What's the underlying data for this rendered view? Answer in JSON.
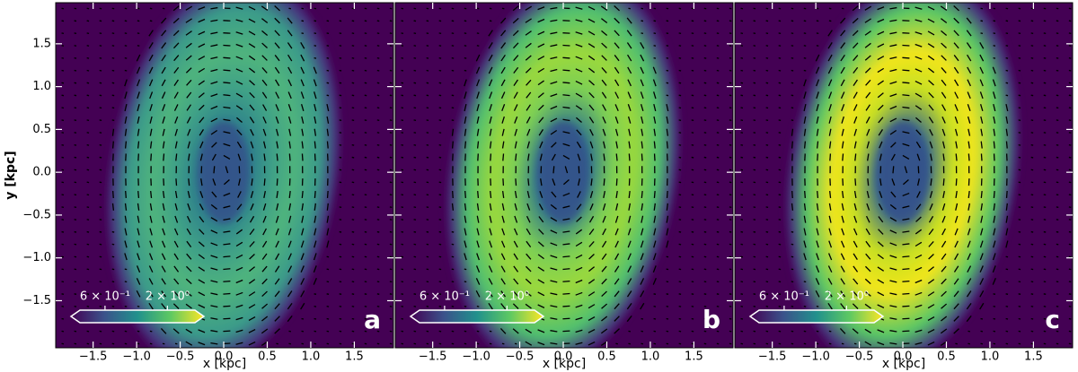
{
  "chart_data": [
    {
      "type": "heatmap",
      "panel_label": "a",
      "xlabel": "x [kpc]",
      "ylabel": "y [kpc]",
      "xlim": [
        -1.93,
        1.95
      ],
      "ylim": [
        -2.05,
        1.98
      ],
      "xticks": [
        {
          "value": -1.5,
          "label": "−1.5"
        },
        {
          "value": -1,
          "label": "−1.0"
        },
        {
          "value": -0.5,
          "label": "−0.5"
        },
        {
          "value": 0,
          "label": "0.0"
        },
        0.5,
        {
          "value": 1,
          "label": "1.0"
        },
        1.5
      ],
      "yticks": [
        {
          "value": -1.5,
          "label": "−1.5"
        },
        {
          "value": -1,
          "label": "−1.0"
        },
        {
          "value": -0.5,
          "label": "−0.5"
        },
        {
          "value": 0,
          "label": "0.0"
        },
        0.5,
        {
          "value": 1,
          "label": "1.0"
        },
        1.5
      ],
      "yticklabels": true,
      "colorbar": {
        "log": true,
        "clim": [
          0.37,
          3.4
        ],
        "colormap": "viridis",
        "ticks": [
          {
            "value": 0.6,
            "label": "6 × 10⁻¹"
          },
          {
            "value": 2,
            "label": "2 × 10⁰"
          }
        ]
      }
    },
    {
      "type": "heatmap",
      "panel_label": "b",
      "xlabel": "x [kpc]",
      "xlim": [
        -1.93,
        1.95
      ],
      "ylim": [
        -2.05,
        1.98
      ],
      "xticks": [
        {
          "value": -1.5,
          "label": "−1.5"
        },
        {
          "value": -1,
          "label": "−1.0"
        },
        {
          "value": -0.5,
          "label": "−0.5"
        },
        {
          "value": 0,
          "label": "0.0"
        },
        0.5,
        {
          "value": 1,
          "label": "1.0"
        },
        1.5
      ],
      "yticks": [
        -1.5,
        -1,
        -0.5,
        0,
        0.5,
        1,
        1.5
      ],
      "yticklabels": false,
      "colorbar": {
        "log": true,
        "clim": [
          0.37,
          3.4
        ],
        "colormap": "viridis",
        "ticks": [
          {
            "value": 0.6,
            "label": "6 × 10⁻¹"
          },
          {
            "value": 2,
            "label": "2 × 10⁰"
          }
        ]
      }
    },
    {
      "type": "heatmap",
      "panel_label": "c",
      "xlabel": "x [kpc]",
      "xlim": [
        -1.93,
        1.95
      ],
      "ylim": [
        -2.05,
        1.98
      ],
      "xticks": [
        {
          "value": -1.5,
          "label": "−1.5"
        },
        {
          "value": -1,
          "label": "−1.0"
        },
        {
          "value": -0.5,
          "label": "−0.5"
        },
        {
          "value": 0,
          "label": "0.0"
        },
        0.5,
        {
          "value": 1,
          "label": "1.0"
        },
        1.5
      ],
      "yticks": [
        -1.5,
        -1,
        -0.5,
        0,
        0.5,
        1,
        1.5
      ],
      "yticklabels": false,
      "colorbar": {
        "log": true,
        "clim": [
          0.37,
          3.4
        ],
        "colormap": "viridis",
        "ticks": [
          {
            "value": 0.6,
            "label": "6 × 10⁻¹"
          },
          {
            "value": 2,
            "label": "2 × 10⁰"
          }
        ]
      }
    }
  ]
}
